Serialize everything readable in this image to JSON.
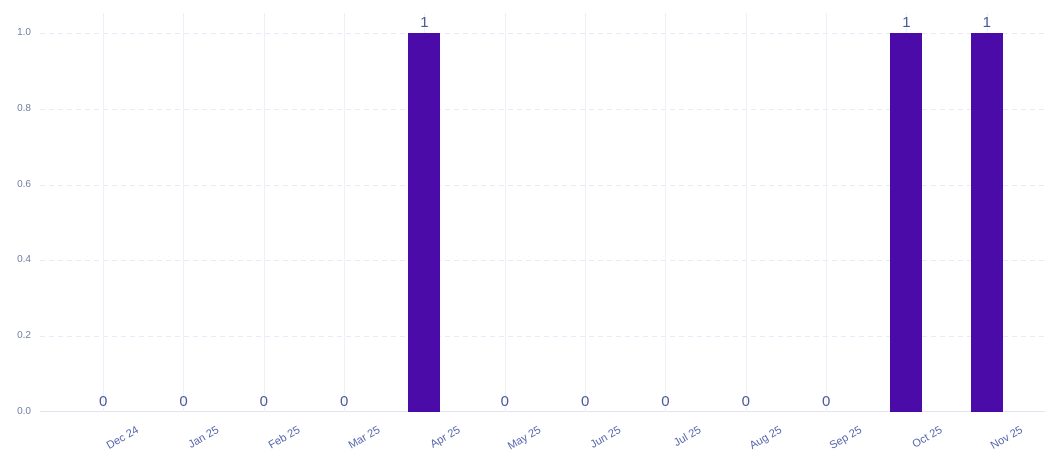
{
  "chart_data": {
    "type": "bar",
    "title": "",
    "xlabel": "",
    "ylabel": "",
    "categories": [
      "Dec 24",
      "Jan 25",
      "Feb 25",
      "Mar 25",
      "Apr 25",
      "May 25",
      "Jun 25",
      "Jul 25",
      "Aug 25",
      "Sep 25",
      "Oct 25",
      "Nov 25"
    ],
    "values": [
      0,
      0,
      0,
      0,
      1,
      0,
      0,
      0,
      0,
      0,
      1,
      1
    ],
    "value_labels": [
      "0",
      "0",
      "0",
      "0",
      "1",
      "0",
      "0",
      "0",
      "0",
      "0",
      "1",
      "1"
    ],
    "ylim": [
      0,
      1
    ],
    "yticks": [
      {
        "value": 1.0,
        "label": "1.0"
      },
      {
        "value": 0.8,
        "label": "0.8"
      },
      {
        "value": 0.6,
        "label": "0.6"
      },
      {
        "value": 0.4,
        "label": "0.4"
      },
      {
        "value": 0.2,
        "label": "0.2"
      },
      {
        "value": 0.0,
        "label": "0.0"
      }
    ],
    "legend": "none",
    "grid": {
      "horizontal": "dashed",
      "vertical": "solid"
    },
    "colors": {
      "bar": "#4A0BA8",
      "value_label": "#4a5a94",
      "y_tick_label": "#707e9f",
      "x_tick_label": "#5565ab",
      "h_gridline": "#e9eaf7",
      "v_gridline": "#efeffa",
      "axis_line": "#e2e3ef",
      "background": "#ffffff"
    }
  }
}
